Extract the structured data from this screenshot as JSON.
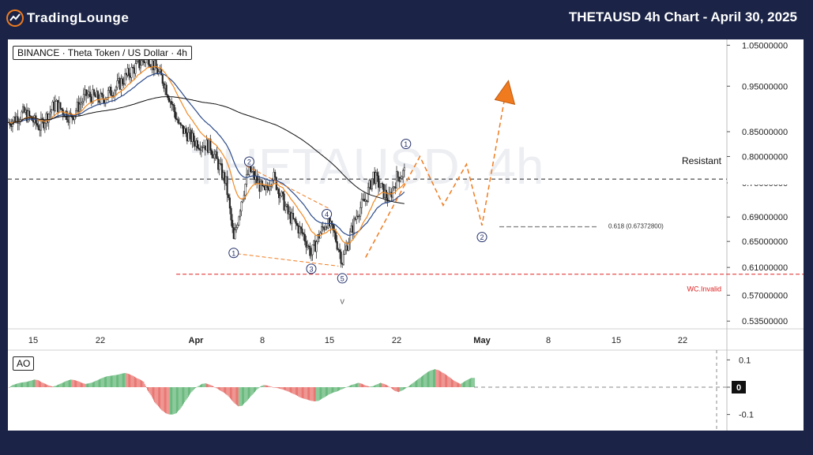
{
  "header": {
    "brand": "TradingLounge",
    "title": "THETAUSD 4h Chart - April 30, 2025"
  },
  "legend": "BINANCE · Theta Token / US Dollar · 4h",
  "watermark": "THETAUSD, 4h",
  "indicator_label": "AO",
  "colors": {
    "background": "#1b2447",
    "accent": "#f07b1f",
    "bull": "#2e9e4a",
    "bear": "#e0403a",
    "ema_fast": "#f08a24",
    "ema_slow": "#2b4a8a",
    "sma_long": "#111111",
    "invalid": "#e02020"
  },
  "chart_data": [
    {
      "type": "candlestick",
      "title": "THETAUSD 4h Chart - April 30, 2025",
      "price_axis": [
        "1.05000000",
        "0.95000000",
        "0.85000000",
        "0.80000000",
        "0.75000000",
        "0.69000000",
        "0.65000000",
        "0.61000000",
        "0.57000000",
        "0.53500000"
      ],
      "date_axis": [
        "15",
        "22",
        "Apr",
        "8",
        "15",
        "22",
        "May",
        "8",
        "15",
        "22"
      ],
      "ylim": [
        0.525,
        1.065
      ],
      "scale": "log",
      "current_price_level": 0.757,
      "price_path": [
        {
          "x": "Mar 10",
          "y": 0.87
        },
        {
          "x": "Mar 12",
          "y": 0.89
        },
        {
          "x": "Mar 14",
          "y": 0.86
        },
        {
          "x": "Mar 16",
          "y": 0.91
        },
        {
          "x": "Mar 18",
          "y": 0.88
        },
        {
          "x": "Mar 20",
          "y": 0.93
        },
        {
          "x": "Mar 22",
          "y": 0.92
        },
        {
          "x": "Mar 24",
          "y": 0.95
        },
        {
          "x": "Mar 26",
          "y": 0.99
        },
        {
          "x": "Mar 28",
          "y": 1.02
        },
        {
          "x": "Mar 30",
          "y": 0.96
        },
        {
          "x": "Apr 1",
          "y": 0.86
        },
        {
          "x": "Apr 3",
          "y": 0.83
        },
        {
          "x": "Apr 5",
          "y": 0.82
        },
        {
          "x": "Apr 7",
          "y": 0.75
        },
        {
          "x": "Apr 8",
          "y": 0.65
        },
        {
          "x": "Apr 9",
          "y": 0.72
        },
        {
          "x": "Apr 10",
          "y": 0.775
        },
        {
          "x": "Apr 12",
          "y": 0.73
        },
        {
          "x": "Apr 13",
          "y": 0.765
        },
        {
          "x": "Apr 15",
          "y": 0.695
        },
        {
          "x": "Apr 17",
          "y": 0.66
        },
        {
          "x": "Apr 18",
          "y": 0.63
        },
        {
          "x": "Apr 19",
          "y": 0.66
        },
        {
          "x": "Apr 20",
          "y": 0.683
        },
        {
          "x": "Apr 21",
          "y": 0.66
        },
        {
          "x": "Apr 22",
          "y": 0.62
        },
        {
          "x": "Apr 23",
          "y": 0.66
        },
        {
          "x": "Apr 24",
          "y": 0.7
        },
        {
          "x": "Apr 25",
          "y": 0.72
        },
        {
          "x": "Apr 26",
          "y": 0.765
        },
        {
          "x": "Apr 27",
          "y": 0.74
        },
        {
          "x": "Apr 28",
          "y": 0.72
        },
        {
          "x": "Apr 29",
          "y": 0.76
        },
        {
          "x": "Apr 30",
          "y": 0.77
        }
      ],
      "horizontal_levels": [
        {
          "label": "Resistant",
          "value": 0.757,
          "style": "dashed-black"
        },
        {
          "label": "WC.Invalid",
          "value": 0.6,
          "style": "dashed-red"
        },
        {
          "label": "0.618 (0.67372800)",
          "value": 0.6737,
          "style": "dashed-gray"
        }
      ],
      "wave_labels": [
        {
          "label": "1",
          "date": "Apr 8",
          "price": 0.632
        },
        {
          "label": "2",
          "date": "Apr 10",
          "price": 0.79
        },
        {
          "label": "3",
          "date": "Apr 18",
          "price": 0.608
        },
        {
          "label": "4",
          "date": "Apr 20",
          "price": 0.695
        },
        {
          "label": "5",
          "date": "Apr 22",
          "price": 0.594
        },
        {
          "label": "v",
          "date": "Apr 22",
          "price": 0.563
        },
        {
          "label": "1",
          "date": "Apr 30",
          "price": 0.825
        },
        {
          "label": "2",
          "date": "May 10",
          "price": 0.657
        }
      ],
      "projection_path": [
        {
          "date": "Apr 25",
          "price": 0.625
        },
        {
          "date": "May 2",
          "price": 0.8
        },
        {
          "date": "May 5",
          "price": 0.71
        },
        {
          "date": "May 8",
          "price": 0.785
        },
        {
          "date": "May 10",
          "price": 0.676
        },
        {
          "date": "May 13",
          "price": 0.93
        }
      ]
    },
    {
      "type": "bar",
      "title": "AO",
      "y_axis": [
        "0.1",
        "0",
        "-0.1"
      ],
      "ylim": [
        -0.13,
        0.13
      ],
      "values": [
        -0.002,
        0.008,
        0.012,
        0.016,
        0.018,
        0.02,
        0.024,
        0.028,
        0.026,
        0.018,
        0.012,
        0.006,
        0.002,
        0.006,
        0.012,
        0.018,
        0.024,
        0.028,
        0.026,
        0.022,
        0.016,
        0.012,
        0.014,
        0.018,
        0.024,
        0.03,
        0.036,
        0.04,
        0.042,
        0.044,
        0.046,
        0.05,
        0.052,
        0.048,
        0.042,
        0.034,
        0.028,
        0.02,
        -0.01,
        -0.03,
        -0.055,
        -0.07,
        -0.085,
        -0.095,
        -0.1,
        -0.1,
        -0.095,
        -0.08,
        -0.06,
        -0.04,
        -0.02,
        -0.005,
        0.004,
        0.012,
        0.014,
        0.01,
        0.004,
        -0.004,
        -0.012,
        -0.02,
        -0.03,
        -0.045,
        -0.06,
        -0.07,
        -0.068,
        -0.055,
        -0.04,
        -0.025,
        -0.01,
        0.002,
        0.008,
        0.006,
        0.002,
        -0.002,
        -0.004,
        -0.008,
        -0.012,
        -0.018,
        -0.024,
        -0.03,
        -0.038,
        -0.042,
        -0.046,
        -0.05,
        -0.052,
        -0.05,
        -0.042,
        -0.034,
        -0.026,
        -0.02,
        -0.016,
        -0.01,
        -0.004,
        0.002,
        0.008,
        0.012,
        0.016,
        0.012,
        0.006,
        0.002,
        0.004,
        0.01,
        0.016,
        0.012,
        0.006,
        -0.004,
        -0.014,
        -0.018,
        -0.012,
        -0.004,
        0.006,
        0.016,
        0.026,
        0.036,
        0.046,
        0.056,
        0.062,
        0.066,
        0.062,
        0.054,
        0.046,
        0.036,
        0.026,
        0.018,
        0.012,
        0.02,
        0.028,
        0.034
      ]
    }
  ]
}
